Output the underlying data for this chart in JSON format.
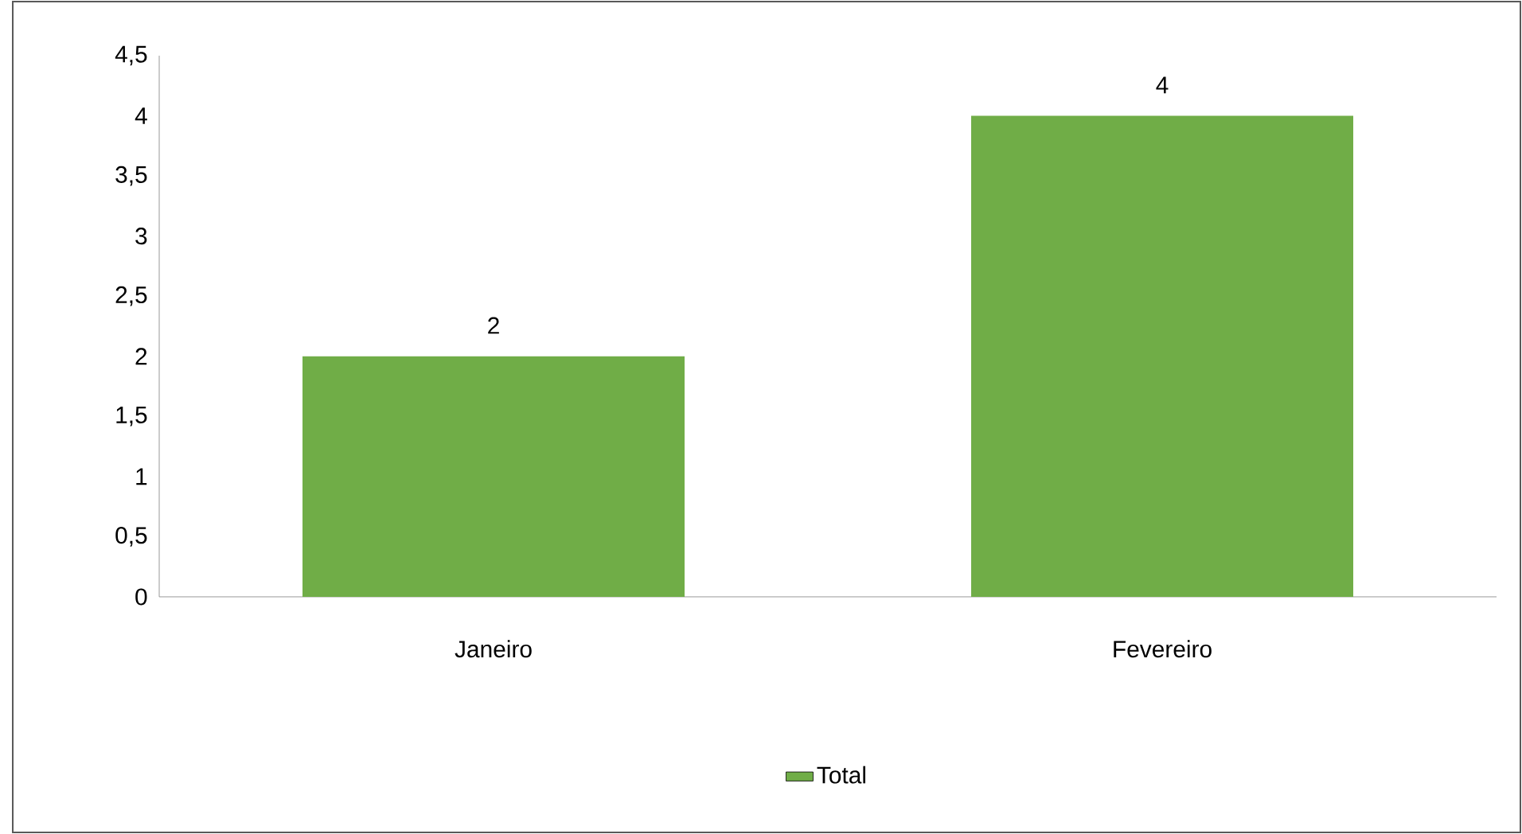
{
  "chart_data": {
    "type": "bar",
    "categories": [
      "Janeiro",
      "Fevereiro"
    ],
    "series": [
      {
        "name": "Total",
        "color": "#70ad47",
        "values": [
          2,
          4
        ]
      }
    ],
    "ylim": [
      0,
      4.5
    ],
    "yticks": [
      0,
      {
        "value": 0.5,
        "label": "0,5"
      },
      1,
      {
        "value": 1.5,
        "label": "1,5"
      },
      2,
      {
        "value": 2.5,
        "label": "2,5"
      },
      3,
      {
        "value": 3.5,
        "label": "3,5"
      },
      4,
      {
        "value": 4.5,
        "label": "4,5"
      }
    ],
    "data_labels": true,
    "legend": "bottom",
    "grid": false
  }
}
